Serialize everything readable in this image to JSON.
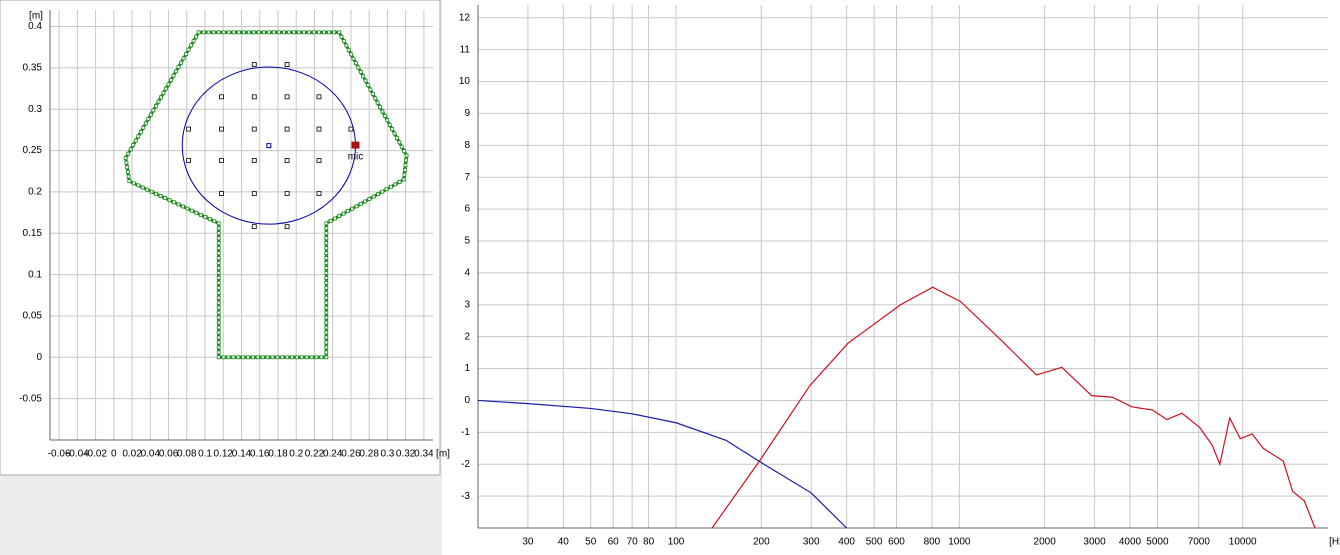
{
  "chart_data": [
    {
      "type": "outline",
      "xlabel": "[m]",
      "ylabel": "[m]",
      "xlim": [
        -0.07,
        0.35
      ],
      "ylim": [
        -0.1,
        0.42
      ],
      "xticks": [
        -0.06,
        -0.04,
        -0.02,
        0,
        0.02,
        0.04,
        0.06,
        0.08,
        0.1,
        0.12,
        0.14,
        0.16,
        0.18,
        0.2,
        0.22,
        0.24,
        0.26,
        0.28,
        0.3,
        0.32,
        0.34
      ],
      "yticks": [
        -0.05,
        0,
        0.05,
        0.1,
        0.15,
        0.2,
        0.25,
        0.3,
        0.35,
        0.4
      ],
      "grid": true,
      "outline": {
        "color": "#1e8a1e",
        "x": [
          0.115,
          0.115,
          0.017,
          0.013,
          0.093,
          0.247,
          0.321,
          0.318,
          0.233,
          0.233,
          0.115
        ],
        "y": [
          0,
          0.162,
          0.213,
          0.241,
          0.393,
          0.393,
          0.244,
          0.215,
          0.162,
          0,
          0
        ]
      },
      "circle": {
        "color": "#0000aa",
        "x": 0.17,
        "y": 0.256,
        "r": 0.095
      },
      "points": {
        "x": [
          0.154,
          0.19,
          0.118,
          0.154,
          0.19,
          0.225,
          0.082,
          0.118,
          0.154,
          0.19,
          0.225,
          0.26,
          0.082,
          0.118,
          0.154,
          0.19,
          0.225,
          0.118,
          0.154,
          0.19,
          0.225,
          0.154,
          0.19
        ],
        "y": [
          0.354,
          0.354,
          0.315,
          0.315,
          0.315,
          0.315,
          0.276,
          0.276,
          0.276,
          0.276,
          0.276,
          0.276,
          0.238,
          0.238,
          0.238,
          0.238,
          0.238,
          0.198,
          0.198,
          0.198,
          0.198,
          0.158,
          0.158
        ]
      },
      "mic": {
        "label": "mic",
        "x": 0.265,
        "y": 0.256,
        "color": "#aa1111"
      }
    },
    {
      "type": "line",
      "xlabel": "[Hz]",
      "xscale": "log",
      "xlim": [
        20,
        20000
      ],
      "ylim": [
        -4,
        12.4
      ],
      "xticks": [
        30,
        40,
        50,
        60,
        70,
        80,
        100,
        200,
        300,
        400,
        500,
        600,
        800,
        1000,
        2000,
        3000,
        4000,
        5000,
        7000,
        10000
      ],
      "yticks": [
        -3,
        -2,
        -1,
        0,
        1,
        2,
        3,
        4,
        5,
        6,
        7,
        8,
        9,
        10,
        11,
        12
      ],
      "grid": true,
      "series": [
        {
          "color": "#cc1122",
          "x": [
            134,
            197,
            297,
            405,
            620,
            805,
            1010,
            1400,
            1870,
            2300,
            2930,
            3470,
            4060,
            4800,
            5400,
            6100,
            7050,
            7800,
            8300,
            9000,
            9800,
            10800,
            11800,
            13900,
            15000,
            16500,
            18000
          ],
          "values": [
            -4,
            -1.9,
            0.47,
            1.8,
            3.0,
            3.55,
            3.1,
            1.9,
            0.8,
            1.04,
            0.15,
            0.1,
            -0.2,
            -0.3,
            -0.6,
            -0.4,
            -0.85,
            -1.4,
            -2.0,
            -0.55,
            -1.2,
            -1.05,
            -1.5,
            -1.9,
            -2.85,
            -3.15,
            -4
          ]
        },
        {
          "color": "#1a1aaa",
          "x": [
            20,
            30,
            50,
            70,
            100,
            150,
            200,
            300,
            400
          ],
          "values": [
            0,
            -0.1,
            -0.25,
            -0.42,
            -0.7,
            -1.25,
            -1.95,
            -2.9,
            -4
          ]
        }
      ]
    }
  ]
}
